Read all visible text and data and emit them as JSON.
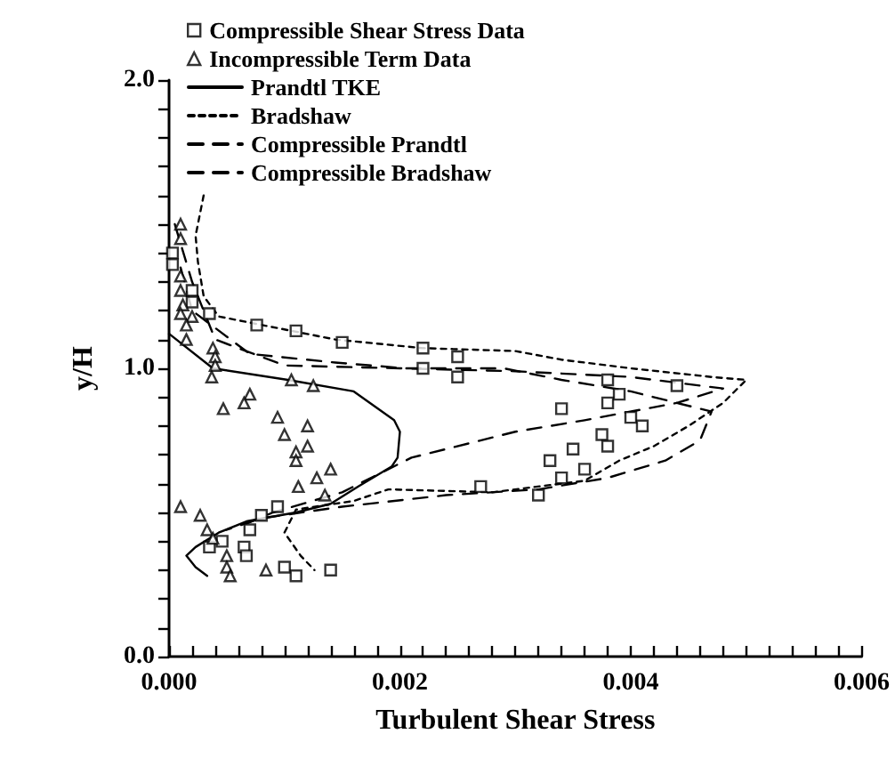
{
  "chart_data": {
    "type": "line",
    "xlabel": "Turbulent Shear Stress",
    "ylabel": "y/H",
    "xlim": [
      0,
      0.006
    ],
    "ylim": [
      0,
      2.0
    ],
    "xticks": [
      {
        "value": 0,
        "label": "0.000"
      },
      {
        "value": 0.0002,
        "label": null
      },
      {
        "value": 0.0004,
        "label": null
      },
      {
        "value": 0.0006,
        "label": null
      },
      {
        "value": 0.0008,
        "label": null
      },
      {
        "value": 0.001,
        "label": null
      },
      {
        "value": 0.0012,
        "label": null
      },
      {
        "value": 0.0014,
        "label": null
      },
      {
        "value": 0.0016,
        "label": null
      },
      {
        "value": 0.0018,
        "label": null
      },
      {
        "value": 0.002,
        "label": "0.002"
      },
      {
        "value": 0.0022,
        "label": null
      },
      {
        "value": 0.0024,
        "label": null
      },
      {
        "value": 0.0026,
        "label": null
      },
      {
        "value": 0.0028,
        "label": null
      },
      {
        "value": 0.003,
        "label": null
      },
      {
        "value": 0.0032,
        "label": null
      },
      {
        "value": 0.0034,
        "label": null
      },
      {
        "value": 0.0036,
        "label": null
      },
      {
        "value": 0.0038,
        "label": null
      },
      {
        "value": 0.004,
        "label": "0.004"
      },
      {
        "value": 0.0042,
        "label": null
      },
      {
        "value": 0.0044,
        "label": null
      },
      {
        "value": 0.0046,
        "label": null
      },
      {
        "value": 0.0048,
        "label": null
      },
      {
        "value": 0.005,
        "label": null
      },
      {
        "value": 0.0052,
        "label": null
      },
      {
        "value": 0.0054,
        "label": null
      },
      {
        "value": 0.0056,
        "label": null
      },
      {
        "value": 0.0058,
        "label": null
      },
      {
        "value": 0.006,
        "label": "0.006"
      }
    ],
    "yticks": [
      {
        "value": 0,
        "label": "0.0"
      },
      {
        "value": 0.1,
        "label": null
      },
      {
        "value": 0.2,
        "label": null
      },
      {
        "value": 0.3,
        "label": null
      },
      {
        "value": 0.4,
        "label": null
      },
      {
        "value": 0.5,
        "label": null
      },
      {
        "value": 0.6,
        "label": null
      },
      {
        "value": 0.7,
        "label": null
      },
      {
        "value": 0.8,
        "label": null
      },
      {
        "value": 0.9,
        "label": null
      },
      {
        "value": 1.0,
        "label": "1.0"
      },
      {
        "value": 1.1,
        "label": null
      },
      {
        "value": 1.2,
        "label": null
      },
      {
        "value": 1.3,
        "label": null
      },
      {
        "value": 1.4,
        "label": null
      },
      {
        "value": 1.5,
        "label": null
      },
      {
        "value": 1.6,
        "label": null
      },
      {
        "value": 1.7,
        "label": null
      },
      {
        "value": 1.8,
        "label": null
      },
      {
        "value": 1.9,
        "label": null
      },
      {
        "value": 2.0,
        "label": "2.0"
      }
    ],
    "grid": false,
    "legend": "top left",
    "series": [
      {
        "name": "Compressible Shear Stress Data",
        "type": "scatter",
        "marker": "square",
        "color": "#000000",
        "x": [
          3e-05,
          3e-05,
          0.0002,
          0.0002,
          0.00035,
          0.00076,
          0.0011,
          0.0015,
          0.0022,
          0.0025,
          0.0022,
          0.0025,
          0.0038,
          0.0039,
          0.0038,
          0.0044,
          0.0034,
          0.004,
          0.0041,
          0.00375,
          0.0038,
          0.0035,
          0.0033,
          0.0036,
          0.0034,
          0.0032,
          0.0027,
          0.00094,
          0.0008,
          0.0007,
          0.00046,
          0.00035,
          0.00065,
          0.00067,
          0.001,
          0.0011,
          0.0014
        ],
        "values": [
          1.4,
          1.36,
          1.27,
          1.23,
          1.19,
          1.15,
          1.13,
          1.09,
          1.07,
          1.04,
          1.0,
          0.97,
          0.96,
          0.91,
          0.88,
          0.94,
          0.86,
          0.83,
          0.8,
          0.77,
          0.73,
          0.72,
          0.68,
          0.65,
          0.62,
          0.56,
          0.59,
          0.52,
          0.49,
          0.44,
          0.4,
          0.38,
          0.38,
          0.35,
          0.31,
          0.28,
          0.3
        ]
      },
      {
        "name": "Incompressible Term Data",
        "type": "scatter",
        "marker": "triangle",
        "color": "#000000",
        "x": [
          0.0001,
          0.0001,
          0.0001,
          0.00012,
          0.0002,
          0.0001,
          0.0001,
          0.0001,
          0.00015,
          0.00015,
          0.00038,
          0.0004,
          0.0004,
          0.00037,
          0.00106,
          0.00125,
          0.0007,
          0.00065,
          0.00047,
          0.00094,
          0.0012,
          0.001,
          0.0012,
          0.0011,
          0.0011,
          0.0014,
          0.00128,
          0.00112,
          0.00135,
          0.00027,
          0.00033,
          0.00038,
          0.0005,
          0.0005,
          0.00053,
          0.00084
        ],
        "values": [
          1.5,
          1.45,
          1.32,
          1.22,
          1.18,
          0.52,
          1.27,
          1.19,
          1.15,
          1.1,
          1.07,
          1.04,
          1.01,
          0.97,
          0.96,
          0.94,
          0.91,
          0.88,
          0.86,
          0.83,
          0.8,
          0.77,
          0.73,
          0.71,
          0.68,
          0.65,
          0.62,
          0.59,
          0.56,
          0.49,
          0.44,
          0.41,
          0.35,
          0.31,
          0.28,
          0.3
        ]
      },
      {
        "name": "Prandtl TKE",
        "line_style": "solid",
        "marker": "none",
        "color": "#000000",
        "x": [
          0,
          0.00038,
          0.00103,
          0.0016,
          0.00195,
          0.002,
          0.00198,
          0.00193,
          0.00164,
          0.0014,
          0.0011,
          0.00068,
          0.00043,
          0.00023,
          0.00015,
          0.00023,
          0.00033
        ],
        "values": [
          1.12,
          1.0,
          0.96,
          0.92,
          0.82,
          0.78,
          0.69,
          0.66,
          0.59,
          0.53,
          0.5,
          0.47,
          0.43,
          0.38,
          0.35,
          0.31,
          0.28
        ]
      },
      {
        "name": "Bradshaw",
        "line_style": "dotted",
        "marker": "none",
        "color": "#000000",
        "x": [
          0.0003,
          0.00023,
          0.00025,
          0.0003,
          0.00043,
          0.00144,
          0.0022,
          0.003,
          0.0034,
          0.004,
          0.0047,
          0.005,
          0.0048,
          0.0045,
          0.0042,
          0.0039,
          0.0036,
          0.0028,
          0.0019,
          0.0016,
          0.0011,
          0.001,
          0.00114,
          0.00126
        ],
        "values": [
          1.6,
          1.46,
          1.37,
          1.25,
          1.18,
          1.1,
          1.07,
          1.06,
          1.03,
          1.0,
          0.97,
          0.96,
          0.88,
          0.8,
          0.73,
          0.68,
          0.61,
          0.57,
          0.58,
          0.54,
          0.51,
          0.43,
          0.35,
          0.3
        ]
      },
      {
        "name": "Compressible Prandtl",
        "line_style": "dashed",
        "marker": "none",
        "color": "#000000",
        "x": [
          0.0001,
          0.0002,
          0.0007,
          0.00144,
          0.00205,
          0.0029,
          0.0034,
          0.004,
          0.0047,
          0.0046,
          0.0043,
          0.0038,
          0.0032,
          0.0024,
          0.0015,
          0.0008,
          0.0005
        ],
        "values": [
          1.35,
          1.2,
          1.05,
          1.02,
          1.0,
          1.0,
          0.96,
          0.92,
          0.85,
          0.75,
          0.68,
          0.62,
          0.58,
          0.56,
          0.52,
          0.48,
          0.44
        ]
      },
      {
        "name": "Compressible Bradshaw",
        "line_style": "dashed",
        "marker": "none",
        "color": "#000000",
        "x": [
          5e-05,
          0.0002,
          0.0004,
          0.001,
          0.002,
          0.003,
          0.004,
          0.0048,
          0.0044,
          0.0036,
          0.003,
          0.0021,
          0.0015,
          0.0009,
          0.0006
        ],
        "values": [
          1.5,
          1.3,
          1.1,
          1.01,
          1.0,
          0.99,
          0.97,
          0.93,
          0.88,
          0.82,
          0.78,
          0.69,
          0.57,
          0.5,
          0.45
        ]
      }
    ]
  }
}
